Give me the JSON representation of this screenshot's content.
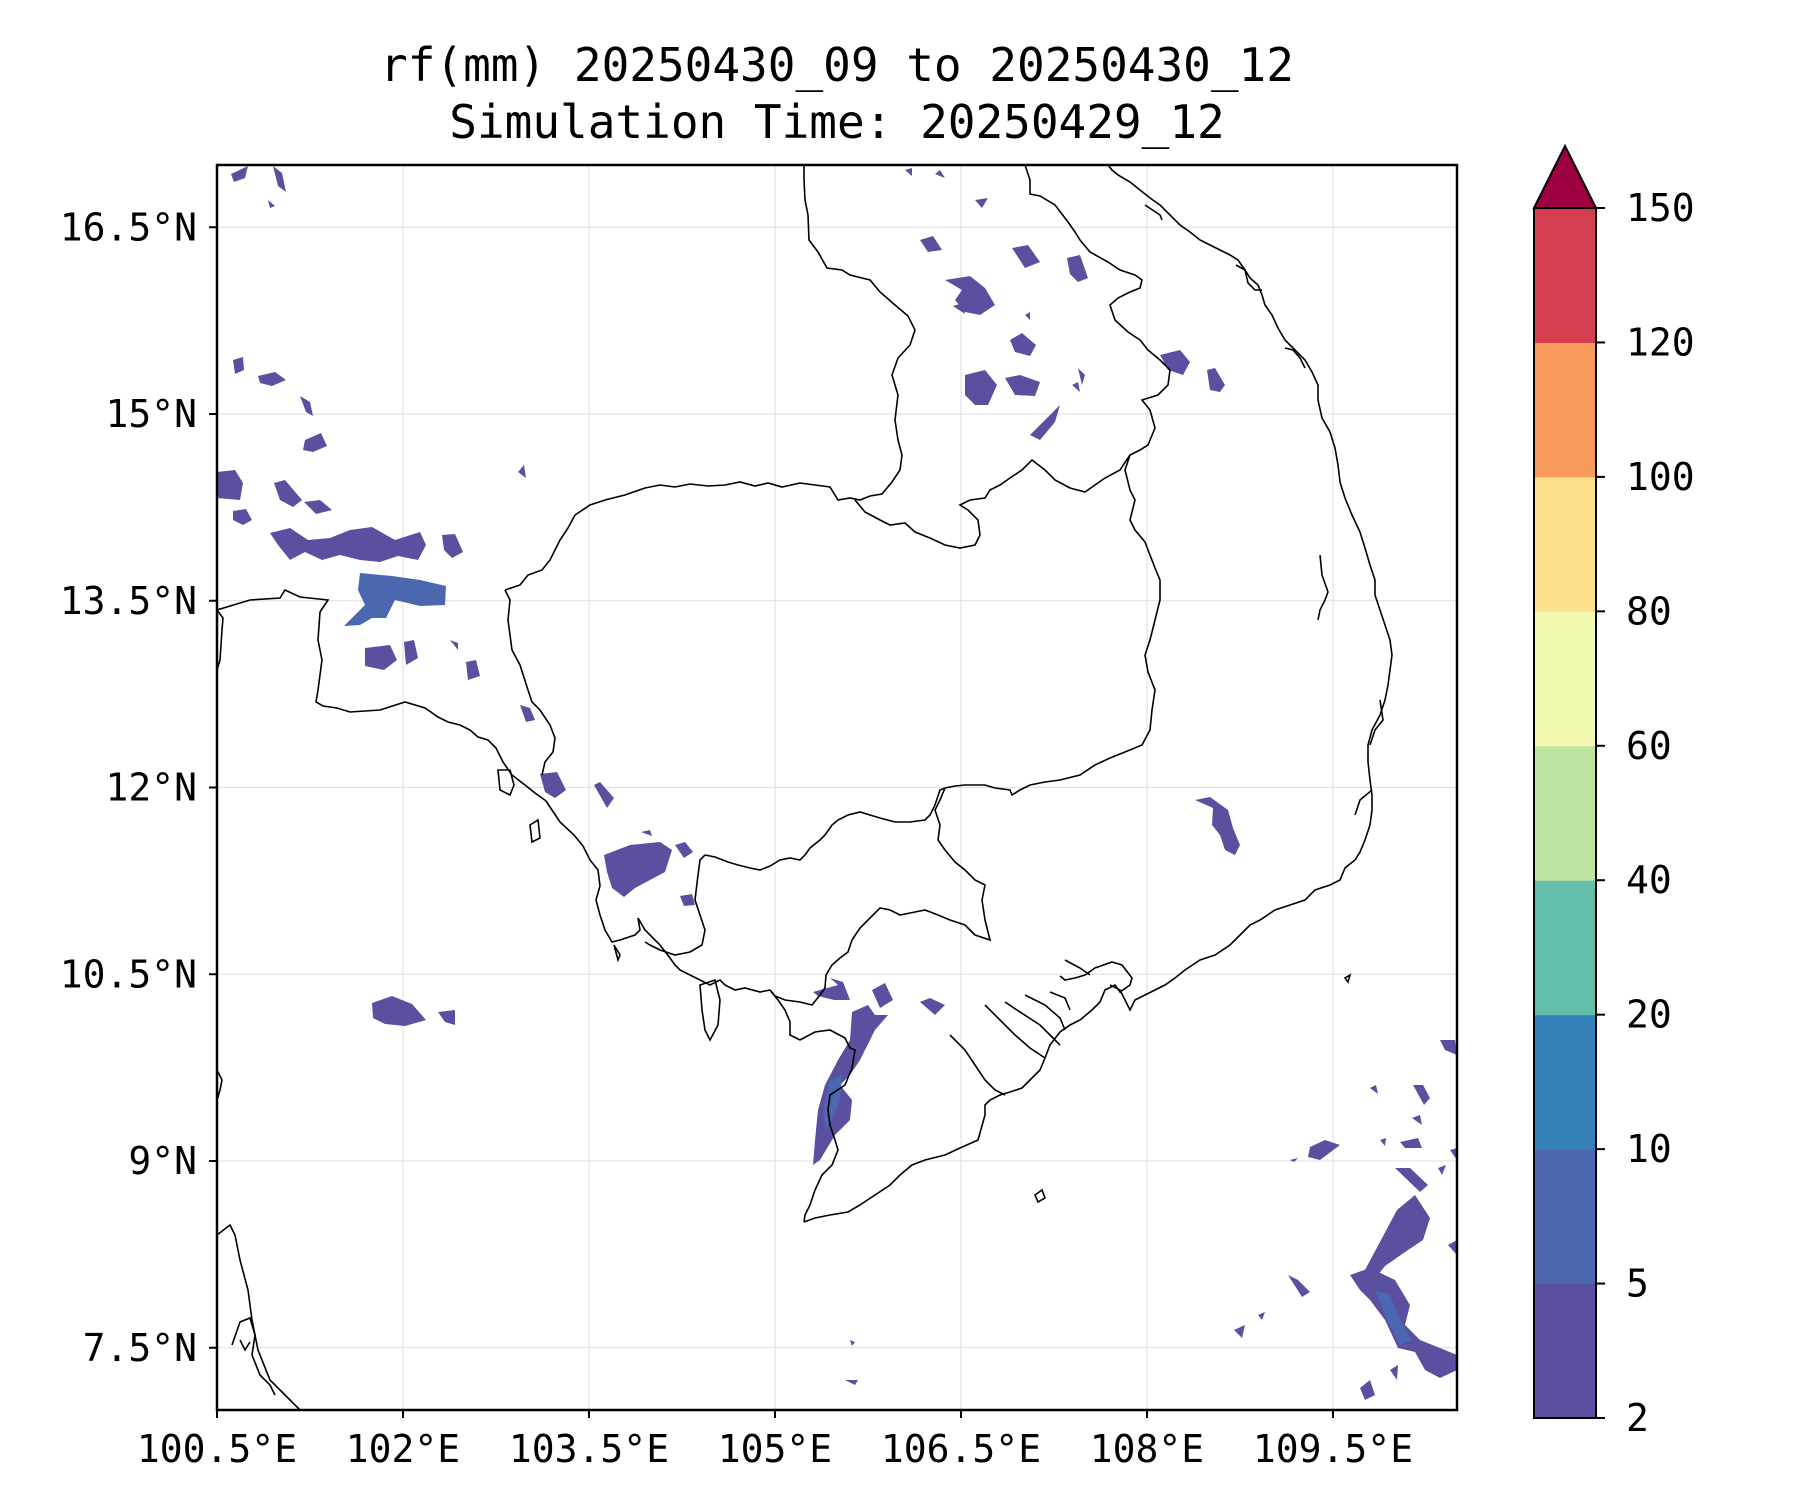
{
  "map": {
    "title_line1": "rf(mm) 20250430_09 to 20250430_12",
    "title_line2": "Simulation Time: 20250429_12",
    "extent": {
      "lon_min": 100.5,
      "lon_max": 110.5,
      "lat_min": 7.0,
      "lat_max": 17.0
    },
    "lon_ticks": [
      {
        "value": 100.5,
        "label": "100.5°E"
      },
      {
        "value": 102.0,
        "label": "102°E"
      },
      {
        "value": 103.5,
        "label": "103.5°E"
      },
      {
        "value": 105.0,
        "label": "105°E"
      },
      {
        "value": 106.5,
        "label": "106.5°E"
      },
      {
        "value": 108.0,
        "label": "108°E"
      },
      {
        "value": 109.5,
        "label": "109.5°E"
      }
    ],
    "lat_ticks": [
      {
        "value": 16.5,
        "label": "16.5°N"
      },
      {
        "value": 15.0,
        "label": "15°N"
      },
      {
        "value": 13.5,
        "label": "13.5°N"
      },
      {
        "value": 12.0,
        "label": "12°N"
      },
      {
        "value": 10.5,
        "label": "10.5°N"
      },
      {
        "value": 9.0,
        "label": "9°N"
      },
      {
        "value": 7.5,
        "label": "7.5°N"
      }
    ],
    "colorbar": {
      "levels": [
        "2",
        "5",
        "10",
        "20",
        "40",
        "60",
        "80",
        "100",
        "120",
        "150"
      ],
      "colors": [
        "#5b50a0",
        "#4a67b0",
        "#3680ba",
        "#63bfaa",
        "#bde3a0",
        "#f3fab0",
        "#fde08b",
        "#f99b5c",
        "#d53e4f"
      ],
      "extend_color": "#9e0142"
    },
    "rain_patch_color_low": "#5b50a0",
    "rain_patch_color_mid": "#4a67b0"
  }
}
